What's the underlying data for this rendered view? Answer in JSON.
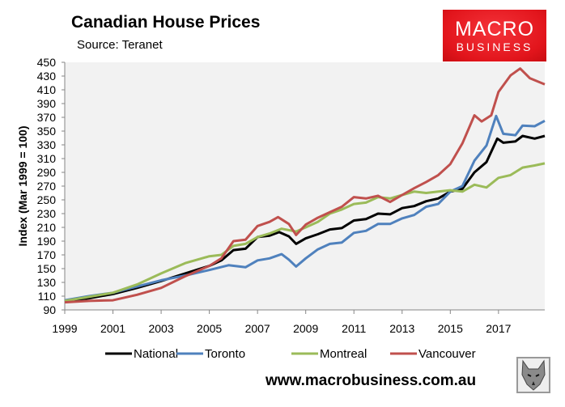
{
  "header": {
    "title": "Canadian House Prices",
    "source": "Source: Teranet"
  },
  "logo": {
    "line1": "MACRO",
    "line2": "BUSINESS",
    "color": "#e2151c"
  },
  "footer": {
    "url": "www.macrobusiness.com.au",
    "badge_icon": "wolf-icon"
  },
  "chart_data": {
    "type": "line",
    "title": "Canadian House Prices",
    "subtitle": "Source: Teranet",
    "xlabel": "",
    "ylabel": "Index (Mar 1999 = 100)",
    "xlim": [
      1999,
      2018.92
    ],
    "ylim": [
      90,
      450
    ],
    "yticks": [
      90,
      110,
      130,
      150,
      170,
      190,
      210,
      230,
      250,
      270,
      290,
      310,
      330,
      350,
      370,
      390,
      410,
      430,
      450
    ],
    "xticks": [
      1999,
      2001,
      2003,
      2005,
      2007,
      2009,
      2011,
      2013,
      2015,
      2017
    ],
    "grid": false,
    "legend_position": "bottom",
    "series": [
      {
        "name": "National",
        "color": "#000000",
        "points": [
          [
            1999,
            103
          ],
          [
            2000,
            107
          ],
          [
            2001,
            113
          ],
          [
            2002,
            122
          ],
          [
            2003,
            132
          ],
          [
            2004,
            143
          ],
          [
            2005,
            154
          ],
          [
            2005.5,
            162
          ],
          [
            2006,
            177
          ],
          [
            2006.5,
            179
          ],
          [
            2007,
            196
          ],
          [
            2007.5,
            198
          ],
          [
            2007.9,
            203
          ],
          [
            2008.3,
            197
          ],
          [
            2008.6,
            186
          ],
          [
            2009,
            194
          ],
          [
            2009.5,
            200
          ],
          [
            2010,
            207
          ],
          [
            2010.5,
            209
          ],
          [
            2011,
            220
          ],
          [
            2011.5,
            222
          ],
          [
            2012,
            230
          ],
          [
            2012.5,
            229
          ],
          [
            2013,
            238
          ],
          [
            2013.5,
            241
          ],
          [
            2014,
            248
          ],
          [
            2014.5,
            252
          ],
          [
            2015,
            262
          ],
          [
            2015.5,
            266
          ],
          [
            2016,
            290
          ],
          [
            2016.5,
            305
          ],
          [
            2016.95,
            339
          ],
          [
            2017.2,
            333
          ],
          [
            2017.7,
            335
          ],
          [
            2018,
            343
          ],
          [
            2018.5,
            339
          ],
          [
            2018.92,
            343
          ]
        ]
      },
      {
        "name": "Toronto",
        "color": "#4f81bd",
        "points": [
          [
            1999,
            104
          ],
          [
            2000,
            110
          ],
          [
            2001,
            115
          ],
          [
            2002,
            124
          ],
          [
            2003,
            133
          ],
          [
            2004,
            140
          ],
          [
            2005,
            148
          ],
          [
            2005.8,
            155
          ],
          [
            2006.5,
            152
          ],
          [
            2007,
            162
          ],
          [
            2007.5,
            165
          ],
          [
            2008,
            171
          ],
          [
            2008.3,
            163
          ],
          [
            2008.6,
            153
          ],
          [
            2009,
            165
          ],
          [
            2009.5,
            178
          ],
          [
            2010,
            186
          ],
          [
            2010.5,
            188
          ],
          [
            2011,
            202
          ],
          [
            2011.5,
            205
          ],
          [
            2012,
            215
          ],
          [
            2012.5,
            215
          ],
          [
            2013,
            223
          ],
          [
            2013.5,
            228
          ],
          [
            2014,
            240
          ],
          [
            2014.5,
            244
          ],
          [
            2015,
            262
          ],
          [
            2015.5,
            270
          ],
          [
            2016,
            307
          ],
          [
            2016.5,
            329
          ],
          [
            2016.9,
            372
          ],
          [
            2017.2,
            346
          ],
          [
            2017.7,
            344
          ],
          [
            2018,
            358
          ],
          [
            2018.5,
            357
          ],
          [
            2018.92,
            365
          ]
        ]
      },
      {
        "name": "Montreal",
        "color": "#9bbb59",
        "points": [
          [
            1999,
            103
          ],
          [
            2000,
            109
          ],
          [
            2001,
            115
          ],
          [
            2002,
            127
          ],
          [
            2003,
            143
          ],
          [
            2004,
            158
          ],
          [
            2005,
            168
          ],
          [
            2005.5,
            170
          ],
          [
            2006,
            183
          ],
          [
            2006.5,
            186
          ],
          [
            2007,
            196
          ],
          [
            2007.5,
            201
          ],
          [
            2008,
            208
          ],
          [
            2008.6,
            204
          ],
          [
            2009,
            210
          ],
          [
            2009.5,
            218
          ],
          [
            2010,
            230
          ],
          [
            2010.5,
            236
          ],
          [
            2011,
            244
          ],
          [
            2011.5,
            246
          ],
          [
            2012,
            254
          ],
          [
            2012.5,
            252
          ],
          [
            2013,
            257
          ],
          [
            2013.5,
            262
          ],
          [
            2014,
            260
          ],
          [
            2014.5,
            262
          ],
          [
            2015,
            264
          ],
          [
            2015.5,
            262
          ],
          [
            2016,
            272
          ],
          [
            2016.5,
            268
          ],
          [
            2017,
            282
          ],
          [
            2017.5,
            286
          ],
          [
            2018,
            297
          ],
          [
            2018.5,
            300
          ],
          [
            2018.92,
            303
          ]
        ]
      },
      {
        "name": "Vancouver",
        "color": "#c0504d",
        "points": [
          [
            1999,
            101
          ],
          [
            2000,
            103
          ],
          [
            2001,
            104
          ],
          [
            2002,
            112
          ],
          [
            2003,
            122
          ],
          [
            2004,
            139
          ],
          [
            2005,
            154
          ],
          [
            2005.5,
            165
          ],
          [
            2006,
            190
          ],
          [
            2006.5,
            192
          ],
          [
            2007,
            212
          ],
          [
            2007.5,
            218
          ],
          [
            2007.85,
            225
          ],
          [
            2008.3,
            215
          ],
          [
            2008.6,
            199
          ],
          [
            2009,
            214
          ],
          [
            2009.5,
            224
          ],
          [
            2010,
            232
          ],
          [
            2010.5,
            240
          ],
          [
            2011,
            254
          ],
          [
            2011.5,
            252
          ],
          [
            2012,
            256
          ],
          [
            2012.5,
            247
          ],
          [
            2013,
            257
          ],
          [
            2013.5,
            267
          ],
          [
            2014,
            276
          ],
          [
            2014.5,
            286
          ],
          [
            2015,
            302
          ],
          [
            2015.5,
            332
          ],
          [
            2016,
            373
          ],
          [
            2016.3,
            364
          ],
          [
            2016.7,
            373
          ],
          [
            2017,
            407
          ],
          [
            2017.5,
            431
          ],
          [
            2017.9,
            441
          ],
          [
            2018.3,
            427
          ],
          [
            2018.92,
            418
          ]
        ]
      }
    ]
  }
}
